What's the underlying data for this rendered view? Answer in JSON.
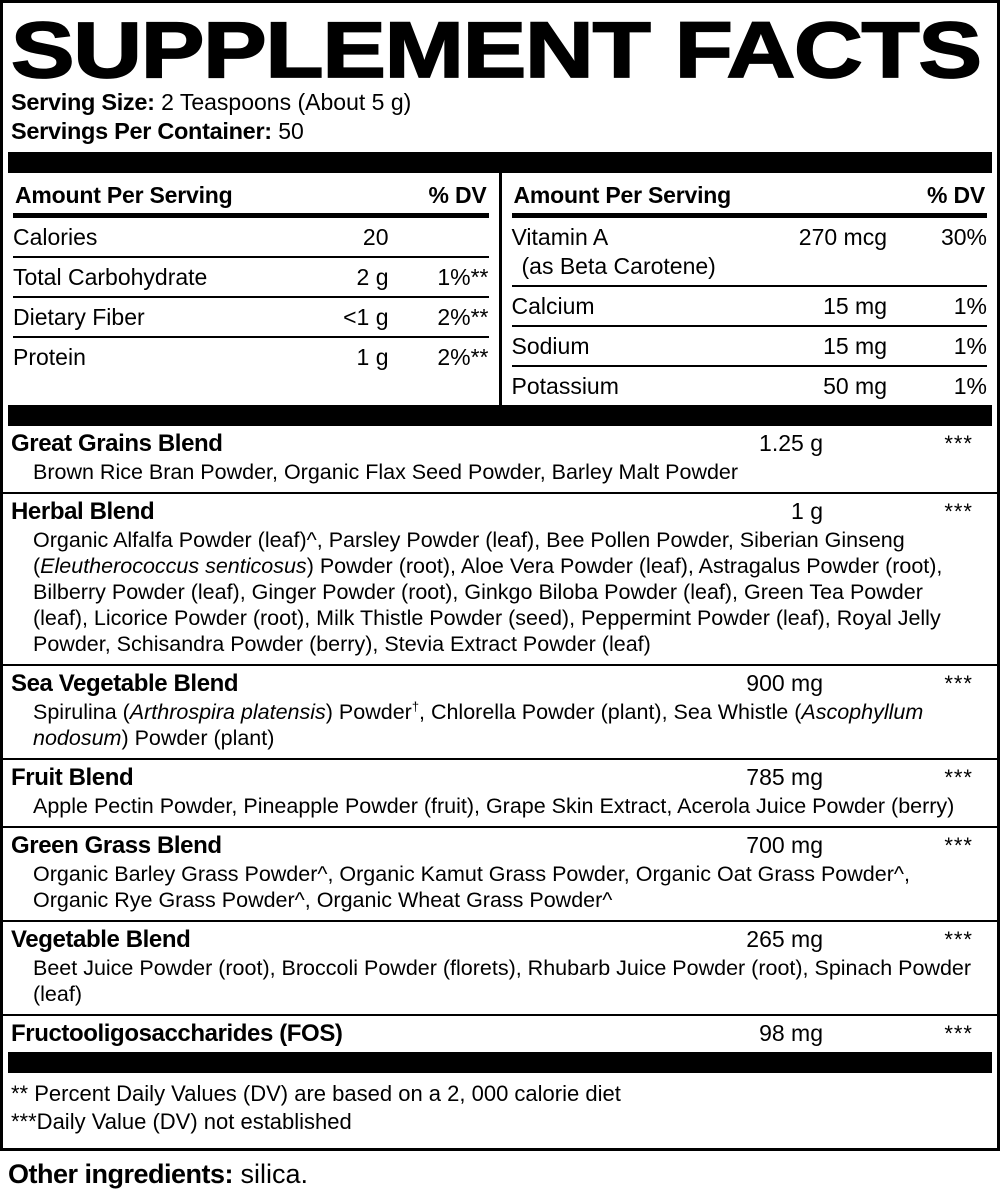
{
  "title": "SUPPLEMENT FACTS",
  "serving": {
    "size_label": "Serving Size:",
    "size_value": " 2 Teaspoons (About 5 g)",
    "count_label": "Servings Per Container:",
    "count_value": " 50"
  },
  "nutrition_left": {
    "header": {
      "amount": "Amount Per Serving",
      "dv": "% DV"
    },
    "rows": [
      {
        "name": "Calories",
        "amount": "20",
        "dv": ""
      },
      {
        "name": "Total Carbohydrate",
        "amount": "2 g",
        "dv": "1%**"
      },
      {
        "name": "Dietary Fiber",
        "amount": "<1 g",
        "dv": "2%**",
        "indent": true
      },
      {
        "name": "Protein",
        "amount": "1 g",
        "dv": "2%**"
      }
    ]
  },
  "nutrition_right": {
    "header": {
      "amount": "Amount Per Serving",
      "dv": "% DV"
    },
    "rows": [
      {
        "name": "Vitamin A",
        "name2": "(as Beta Carotene)",
        "amount": "270 mcg",
        "dv": "30%"
      },
      {
        "name": "Calcium",
        "amount": "15 mg",
        "dv": "1%"
      },
      {
        "name": "Sodium",
        "amount": "15 mg",
        "dv": "1%"
      },
      {
        "name": "Potassium",
        "amount": "50 mg",
        "dv": "1%"
      }
    ]
  },
  "blends": {
    "items": [
      {
        "name": "Great Grains Blend",
        "amount": "1.25 g",
        "dv": "***",
        "ingredients": [
          {
            "t": "Brown Rice Bran Powder, Organic Flax Seed Powder, Barley Malt Powder"
          }
        ]
      },
      {
        "name": "Herbal Blend",
        "amount": "1 g",
        "dv": "***",
        "ingredients": [
          {
            "t": "Organic Alfalfa Powder (leaf)^, Parsley Powder (leaf), Bee Pollen Powder, Siberian Ginseng ("
          },
          {
            "t": "Eleutherococcus senticosus",
            "style": "i"
          },
          {
            "t": ") Powder (root), Aloe Vera Powder (leaf), Astragalus Powder (root), Bilberry Powder (leaf), Ginger Powder (root), Ginkgo Biloba Powder (leaf), Green Tea Powder (leaf), Licorice Powder (root), Milk Thistle Powder (seed), Peppermint Powder (leaf), Royal Jelly Powder, Schisandra Powder (berry), Stevia Extract Powder (leaf)"
          }
        ]
      },
      {
        "name": "Sea Vegetable Blend",
        "amount": "900 mg",
        "dv": "***",
        "ingredients": [
          {
            "t": "Spirulina ("
          },
          {
            "t": "Arthrospira platensis",
            "style": "i"
          },
          {
            "t": ") Powder"
          },
          {
            "t": "†",
            "style": "sup"
          },
          {
            "t": ", Chlorella Powder (plant), Sea Whistle ("
          },
          {
            "t": "Ascophyllum nodosum",
            "style": "i"
          },
          {
            "t": ") Powder (plant)"
          }
        ]
      },
      {
        "name": "Fruit Blend",
        "amount": "785 mg",
        "dv": "***",
        "ingredients": [
          {
            "t": "Apple Pectin Powder, Pineapple Powder (fruit), Grape Skin Extract, Acerola Juice Powder (berry)"
          }
        ]
      },
      {
        "name": "Green Grass Blend",
        "amount": "700 mg",
        "dv": "***",
        "ingredients": [
          {
            "t": "Organic Barley Grass Powder^, Organic Kamut Grass Powder, Organic Oat Grass Powder^, Organic Rye Grass Powder^, Organic Wheat Grass Powder^"
          }
        ]
      },
      {
        "name": "Vegetable Blend",
        "amount": "265 mg",
        "dv": "***",
        "ingredients": [
          {
            "t": "Beet Juice Powder (root), Broccoli Powder (florets), Rhubarb Juice Powder (root), Spinach Powder (leaf)"
          }
        ]
      },
      {
        "name": "Fructooligosaccharides (FOS)",
        "amount": "98 mg",
        "dv": "***",
        "plain": true
      }
    ]
  },
  "footnotes": {
    "line1": "** Percent Daily Values (DV) are based on a 2, 000 calorie diet",
    "line2": "***Daily Value (DV) not established"
  },
  "other_ingredients": {
    "label": "Other ingredients:",
    "value": " silica."
  },
  "colors": {
    "ink": "#000000",
    "paper": "#ffffff"
  }
}
